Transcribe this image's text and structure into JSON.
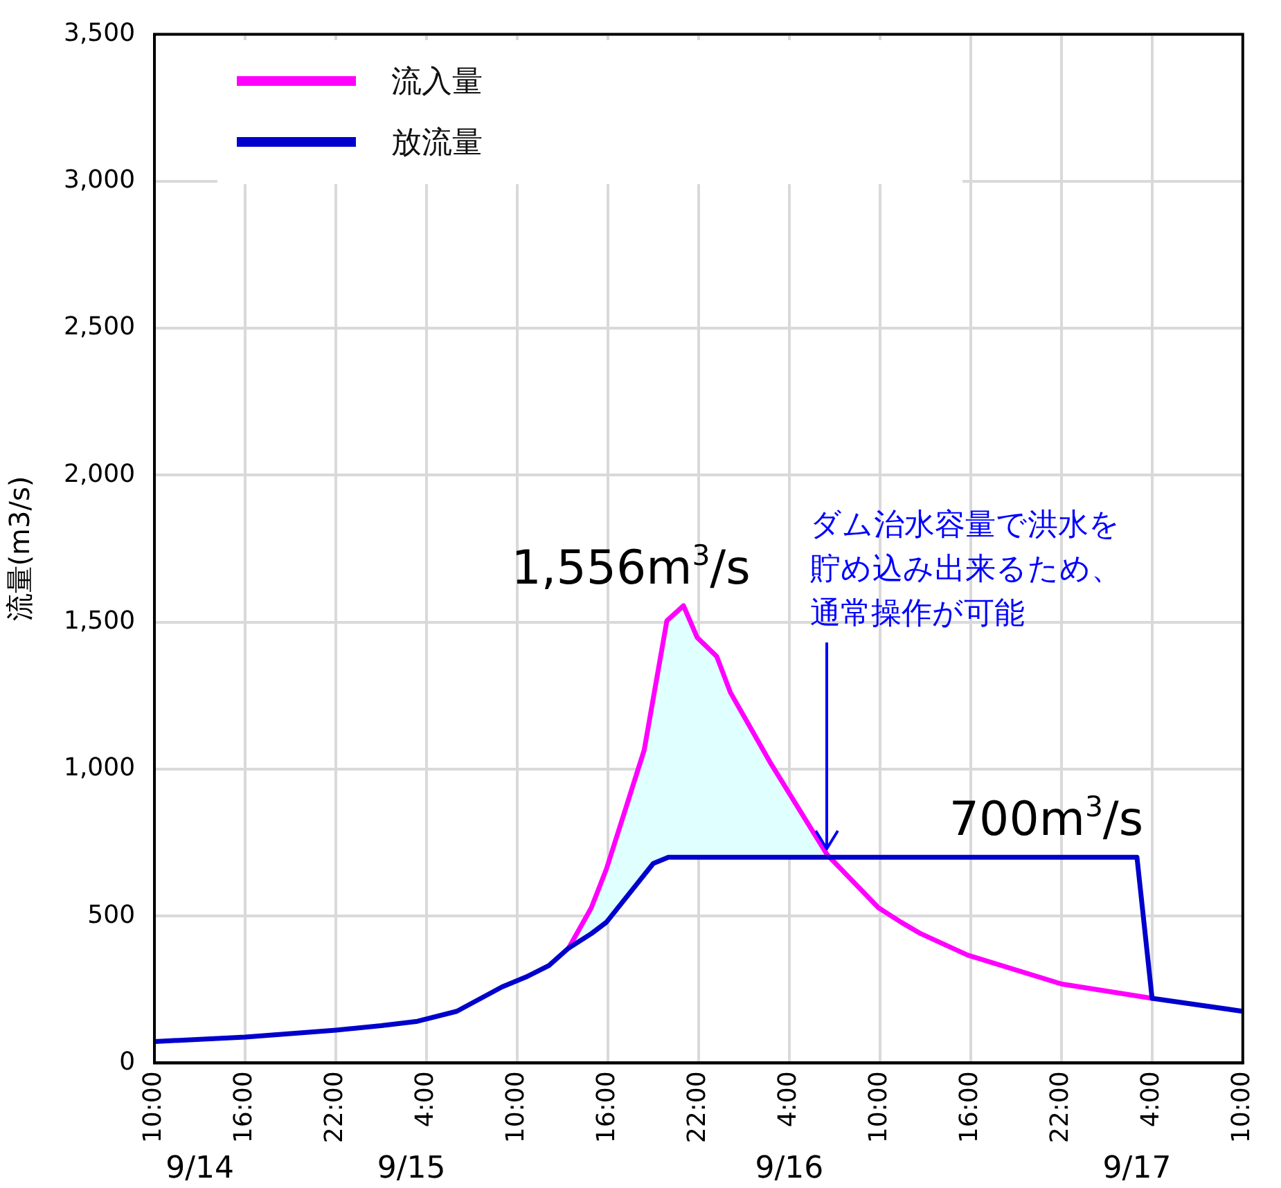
{
  "chart_data": {
    "type": "line",
    "ylabel": "流量(m3/s)",
    "legend": "top left",
    "grid": true,
    "marker": "none",
    "line_style": "solid",
    "xlim": [
      "--09-14T10:00",
      "--09-17T10:00"
    ],
    "xticks": [
      {
        "value": "--09-14T10:00",
        "label": "10:00"
      },
      {
        "value": "--09-14T16:00",
        "label": "16:00"
      },
      {
        "value": "--09-14T22:00",
        "label": "22:00"
      },
      {
        "value": "--09-15T04:00",
        "label": "4:00"
      },
      {
        "value": "--09-15T10:00",
        "label": "10:00"
      },
      {
        "value": "--09-15T16:00",
        "label": "16:00"
      },
      {
        "value": "--09-15T22:00",
        "label": "22:00"
      },
      {
        "value": "--09-16T04:00",
        "label": "4:00"
      },
      {
        "value": "--09-16T10:00",
        "label": "10:00"
      },
      {
        "value": "--09-16T16:00",
        "label": "16:00"
      },
      {
        "value": "--09-16T22:00",
        "label": "22:00"
      },
      {
        "value": "--09-17T04:00",
        "label": "4:00"
      },
      {
        "value": "--09-17T10:00",
        "label": "10:00"
      }
    ],
    "x2lim": [
      "--09-14T10:00",
      "--09-17T10:00"
    ],
    "x2ticks": [
      {
        "value": "--09-14T13:00",
        "label": "9/14"
      },
      {
        "value": "--09-15T03:00",
        "label": "9/15"
      },
      {
        "value": "--09-16T04:00",
        "label": "9/16"
      },
      {
        "value": "--09-17T03:00",
        "label": "9/17"
      }
    ],
    "ylim": [
      0,
      3500
    ],
    "yticks": [
      0,
      500,
      {
        "value": 1000,
        "label": "1,000"
      },
      {
        "value": 1500,
        "label": "1,500"
      },
      {
        "value": 2000,
        "label": "2,000"
      },
      {
        "value": 2500,
        "label": "2,500"
      },
      {
        "value": 3000,
        "label": "3,000"
      },
      {
        "value": 3500,
        "label": "3,500"
      }
    ],
    "series": [
      {
        "name": "流入量",
        "color": "#ff00ff",
        "x": [
          "--09-15T13:24",
          "--09-15T14:54",
          "--09-15T15:54",
          "--09-15T17:12",
          "--09-15T18:24",
          "--09-15T19:54",
          "--09-15T21:00",
          "--09-15T21:54",
          "--09-15T23:12",
          "--09-16T00:06",
          "--09-16T02:48",
          "--09-16T06:30",
          "--09-16T09:54",
          "--09-16T11:24",
          "--09-16T12:42",
          "--09-16T15:48",
          "--09-16T22:00",
          "--09-17T04:00"
        ],
        "values": [
          391,
          528,
          660,
          870,
          1065,
          1505,
          1556,
          1448,
          1383,
          1261,
          1017,
          709,
          528,
          479,
          440,
          367,
          269,
          220
        ]
      },
      {
        "name": "放流量",
        "color": "#0000cc",
        "x": [
          "--09-14T10:00",
          "--09-14T16:00",
          "--09-14T22:00",
          "--09-15T01:00",
          "--09-15T03:24",
          "--09-15T06:00",
          "--09-15T09:00",
          "--09-15T10:36",
          "--09-15T12:06",
          "--09-15T13:24",
          "--09-15T14:54",
          "--09-15T15:54",
          "--09-15T19:00",
          "--09-15T20:00",
          "--09-17T03:00",
          "--09-17T04:00",
          "--09-17T10:00"
        ],
        "values": [
          73,
          88,
          112,
          127,
          142,
          176,
          259,
          293,
          332,
          391,
          440,
          479,
          679,
          700,
          700,
          220,
          176
        ]
      }
    ],
    "annotations": [
      {
        "text": "1,556m$^{3}$/s",
        "x": "--09-15T21:00",
        "y": 1556
      },
      {
        "text": "700m$^{3}$/s",
        "x": "--09-16T21:00",
        "y": 700
      },
      {
        "text": "ダム治水容量で洪水を貯め込み出来るため、通常操作が可能",
        "x": "--09-16T06:30",
        "y": 709
      }
    ]
  }
}
